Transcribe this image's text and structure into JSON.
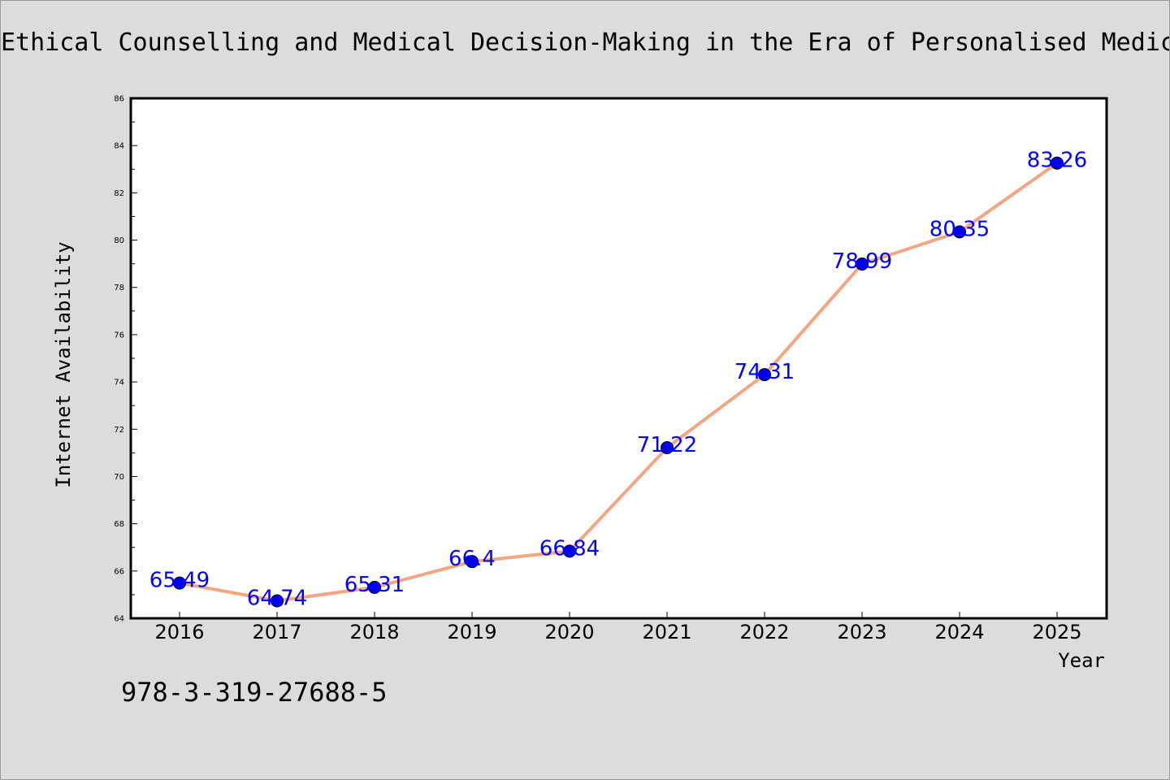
{
  "colors": {
    "background": "#dcdcdc",
    "plot_background": "#ffffff",
    "line": "#f4a582",
    "marker": "#0000ff",
    "data_label": "#0000ff"
  },
  "footer": {
    "isbn": "978-3-319-27688-5"
  },
  "chart_data": {
    "type": "line",
    "title": "Ethical Counselling and Medical Decision-Making in the Era of Personalised Medic",
    "xlabel": "Year",
    "ylabel": "Internet Availability",
    "categories": [
      "2016",
      "2017",
      "2018",
      "2019",
      "2020",
      "2021",
      "2022",
      "2023",
      "2024",
      "2025"
    ],
    "values": [
      65.49,
      64.74,
      65.31,
      66.4,
      66.84,
      71.22,
      74.31,
      78.99,
      80.35,
      83.26
    ],
    "data_labels": [
      "65.49",
      "64.74",
      "65.31",
      "66.4",
      "66.84",
      "71.22",
      "74.31",
      "78.99",
      "80.35",
      "83.26"
    ],
    "ylim": [
      64,
      86
    ],
    "yticks": [
      "64",
      "66",
      "68",
      "70",
      "72",
      "74",
      "76",
      "78",
      "80",
      "82",
      "84",
      "86"
    ],
    "grid": false,
    "legend": "none"
  }
}
